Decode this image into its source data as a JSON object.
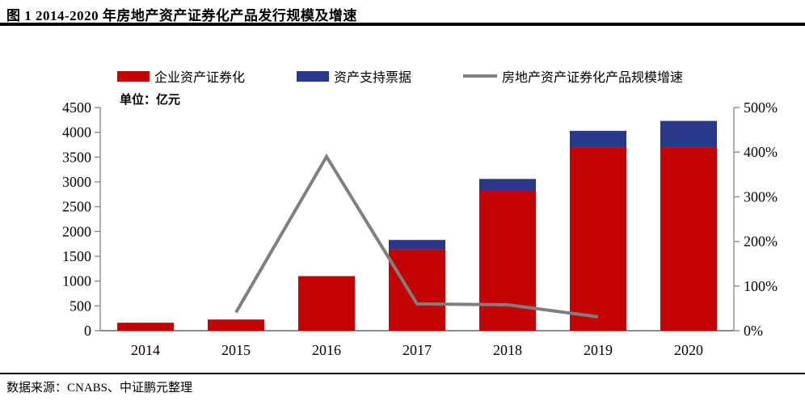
{
  "header": {
    "title": "图 1  2014-2020 年房地产资产证券化产品发行规模及增速"
  },
  "footer": {
    "source": "数据来源：CNABS、中证鹏元整理"
  },
  "colors": {
    "bar_red": "#C30202",
    "bar_blue": "#29388B",
    "line_gray": "#7F7F7F",
    "axis_gray": "#8C8C8C",
    "rule_black": "#000000"
  },
  "chart_data": {
    "type": "bar",
    "subtype": "stacked-bar-with-line",
    "title": "图 1 2014-2020 年房地产资产证券化产品发行规模及增速",
    "unit_label": "单位：亿元",
    "categories": [
      "2014",
      "2015",
      "2016",
      "2017",
      "2018",
      "2019",
      "2020"
    ],
    "series": [
      {
        "name": "企业资产证券化",
        "type": "bar",
        "stack": true,
        "color": "#C30202",
        "values": [
          160,
          225,
          1100,
          1640,
          2820,
          3700,
          3700
        ]
      },
      {
        "name": "资产支持票据",
        "type": "bar",
        "stack": true,
        "color": "#29388B",
        "values": [
          0,
          0,
          0,
          190,
          240,
          330,
          530
        ]
      },
      {
        "name": "房地产资产证券化产品规模增速",
        "type": "line",
        "axis": "right",
        "color": "#7F7F7F",
        "values": [
          null,
          41,
          390,
          60,
          58,
          31,
          null
        ]
      }
    ],
    "stacked_totals": [
      160,
      225,
      1100,
      1830,
      3060,
      4030,
      4230
    ],
    "left_axis": {
      "min": 0,
      "max": 4500,
      "step": 500,
      "ticks": [
        "0",
        "500",
        "1000",
        "1500",
        "2000",
        "2500",
        "3000",
        "3500",
        "4000",
        "4500"
      ]
    },
    "right_axis": {
      "min": 0,
      "max": 500,
      "step": 100,
      "suffix": "%",
      "ticks": [
        "0%",
        "100%",
        "200%",
        "300%",
        "400%",
        "500%"
      ]
    },
    "grid": false,
    "legend_position": "top"
  }
}
